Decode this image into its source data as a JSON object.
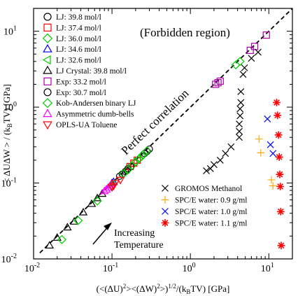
{
  "chart_data": {
    "type": "scatter",
    "xscale": "log",
    "yscale": "log",
    "xlim": [
      0.01,
      20
    ],
    "ylim": [
      0.01,
      20
    ],
    "grid": false,
    "xlabel": "(<(ΔU)²><(ΔW)²>)^1/2/(kBTV)   [GPa]",
    "ylabel": "< ΔUΔW > / (kBTV)   [GPa]",
    "xlabel_parts": {
      "pre": "(<(ΔU)",
      "sup1": "2",
      "mid": "><(ΔW)",
      "sup2": "2",
      "mid2": ">)",
      "sup3": "1/2",
      "post": "/(k",
      "sub": "B",
      "post2": "TV)   [GPa]"
    },
    "ylabel_parts": {
      "pre": "< ΔUΔW > / (k",
      "sub": "B",
      "post": "TV)   [GPa]"
    },
    "xticks": [
      {
        "v": 0.01,
        "base": "10",
        "exp": "-2"
      },
      {
        "v": 0.1,
        "base": "10",
        "exp": "-1"
      },
      {
        "v": 1,
        "base": "10",
        "exp": "0"
      },
      {
        "v": 10,
        "base": "10",
        "exp": "1"
      }
    ],
    "yticks": [
      {
        "v": 0.01,
        "base": "10",
        "exp": "-2"
      },
      {
        "v": 0.1,
        "base": "10",
        "exp": "-1"
      },
      {
        "v": 1,
        "base": "10",
        "exp": "0"
      },
      {
        "v": 10,
        "base": "10",
        "exp": "1"
      }
    ],
    "annotations": {
      "forbidden": "(Forbidden region)",
      "perfect": "Perfect correlation",
      "increasing_line1": "Increasing",
      "increasing_line2": "Temperature"
    },
    "legend_left_placement": "top-left",
    "legend_right_placement": "bottom-right",
    "series": [
      {
        "name": "LJ: 39.8 mol/l",
        "marker": "circle",
        "color": "#000000",
        "legend": "left",
        "points": [
          [
            0.125,
            0.123
          ],
          [
            0.135,
            0.131
          ],
          [
            0.148,
            0.142
          ],
          [
            0.16,
            0.155
          ]
        ]
      },
      {
        "name": "LJ: 37.4 mol/l",
        "marker": "square",
        "color": "#ff0000",
        "legend": "left",
        "points": [
          [
            0.17,
            0.165
          ],
          [
            0.19,
            0.183
          ],
          [
            0.21,
            0.2
          ]
        ]
      },
      {
        "name": "LJ: 36.0 mol/l",
        "marker": "diamond",
        "color": "#00cc00",
        "legend": "left",
        "points": [
          [
            0.2,
            0.19
          ],
          [
            0.22,
            0.208
          ],
          [
            0.24,
            0.225
          ]
        ]
      },
      {
        "name": "LJ: 34.6 mol/l",
        "marker": "triangle-up",
        "color": "#0000ff",
        "legend": "left",
        "points": [
          [
            0.1,
            0.1
          ],
          [
            0.105,
            0.103
          ]
        ]
      },
      {
        "name": "LJ: 32.6 mol/l",
        "marker": "triangle-left",
        "color": "#00cc00",
        "legend": "left",
        "points": [
          [
            0.095,
            0.092
          ],
          [
            0.1,
            0.097
          ]
        ]
      },
      {
        "name": "LJ Crystal: 39.8 mol/l",
        "marker": "triangle-up",
        "color": "#000000",
        "legend": "left",
        "points": [
          [
            0.016,
            0.015
          ],
          [
            0.02,
            0.019
          ],
          [
            0.027,
            0.026
          ],
          [
            0.033,
            0.031
          ],
          [
            0.043,
            0.041
          ],
          [
            0.055,
            0.053
          ],
          [
            0.065,
            0.063
          ],
          [
            0.075,
            0.072
          ]
        ]
      },
      {
        "name": "Exp: 33.2 mol/l",
        "marker": "square",
        "color": "#aa00aa",
        "legend": "left",
        "points": [
          [
            2.1,
            2.0
          ],
          [
            2.25,
            2.1
          ],
          [
            2.4,
            2.2
          ],
          [
            5.8,
            5.6
          ],
          [
            6.6,
            6.3
          ],
          [
            9.3,
            8.9
          ]
        ]
      },
      {
        "name": "Exp: 30.7 mol/l",
        "marker": "circle",
        "color": "#000000",
        "legend": "left",
        "points": [
          [
            0.155,
            0.146
          ],
          [
            0.175,
            0.165
          ],
          [
            0.26,
            0.245
          ],
          [
            0.28,
            0.26
          ],
          [
            0.3,
            0.28
          ]
        ]
      },
      {
        "name": "Kob-Andersen binary LJ",
        "marker": "diamond",
        "color": "#00cc00",
        "legend": "left",
        "points": [
          [
            0.023,
            0.018
          ],
          [
            0.037,
            0.032
          ],
          [
            0.065,
            0.058
          ],
          [
            0.14,
            0.133
          ],
          [
            0.16,
            0.15
          ],
          [
            0.18,
            0.17
          ],
          [
            0.2,
            0.19
          ],
          [
            0.25,
            0.238
          ],
          [
            0.28,
            0.266
          ],
          [
            3.8,
            3.6
          ],
          [
            4.3,
            4.0
          ]
        ]
      },
      {
        "name": "Asymmetric dumb-bells",
        "marker": "triangle-up",
        "color": "#ff00ff",
        "legend": "left",
        "points": [
          [
            0.08,
            0.078
          ],
          [
            0.085,
            0.082
          ],
          [
            0.09,
            0.087
          ],
          [
            0.095,
            0.092
          ],
          [
            0.098,
            0.096
          ]
        ]
      },
      {
        "name": "OPLS-UA Toluene",
        "marker": "triangle-down",
        "color": "#ff0000",
        "legend": "left",
        "points": [
          [
            0.1,
            0.088
          ],
          [
            0.105,
            0.092
          ],
          [
            0.11,
            0.1
          ],
          [
            0.128,
            0.11
          ]
        ]
      },
      {
        "name": "GROMOS Methanol",
        "marker": "x",
        "color": "#000000",
        "legend": "right",
        "points": [
          [
            1.6,
            0.145
          ],
          [
            1.8,
            0.155
          ],
          [
            2.0,
            0.175
          ],
          [
            2.4,
            0.2
          ],
          [
            2.8,
            0.245
          ],
          [
            3.3,
            0.3
          ],
          [
            4.2,
            0.4
          ],
          [
            4.2,
            0.48
          ],
          [
            4.2,
            0.6
          ],
          [
            4.3,
            0.77
          ],
          [
            4.3,
            0.95
          ],
          [
            4.4,
            1.15
          ],
          [
            4.4,
            1.6
          ],
          [
            4.7,
            2.7
          ],
          [
            4.9,
            3.3
          ],
          [
            6.0,
            4.4
          ],
          [
            7.3,
            5.3
          ]
        ]
      },
      {
        "name": "SPC/E water: 0.9 g/ml",
        "marker": "plus",
        "color": "#ffaa00",
        "legend": "right",
        "points": [
          [
            7.5,
            0.38
          ],
          [
            7.9,
            0.25
          ],
          [
            10.8,
            0.11
          ],
          [
            11.3,
            0.092
          ]
        ]
      },
      {
        "name": "SPC/E water: 1.0 g/ml",
        "marker": "x",
        "color": "#0000ff",
        "legend": "right",
        "points": [
          [
            9.6,
            0.7
          ],
          [
            10.5,
            0.32
          ],
          [
            11.3,
            0.245
          ]
        ]
      },
      {
        "name": "SPC/E water: 1.1 g/ml",
        "marker": "star",
        "color": "#ff0000",
        "legend": "right",
        "points": [
          [
            12.6,
            1.15
          ],
          [
            12.9,
            0.78
          ],
          [
            13.3,
            0.43
          ],
          [
            13.6,
            0.22
          ],
          [
            13.8,
            0.13
          ],
          [
            14.0,
            0.09
          ],
          [
            14.2,
            0.042
          ],
          [
            14.4,
            0.015
          ]
        ]
      }
    ]
  }
}
